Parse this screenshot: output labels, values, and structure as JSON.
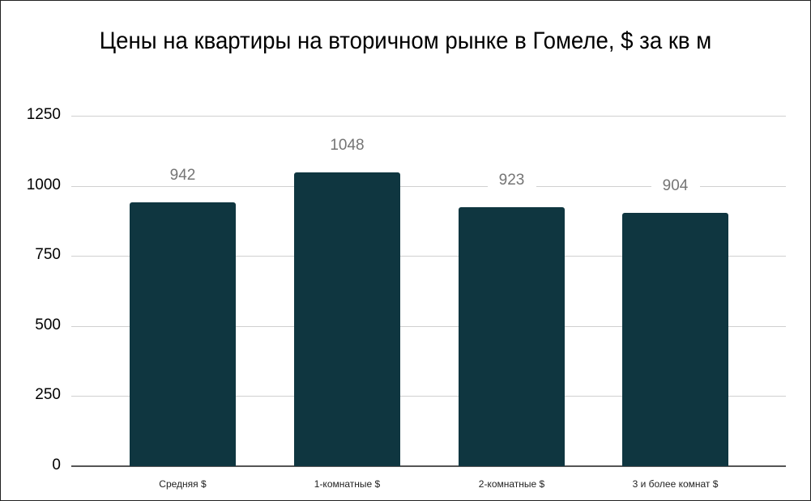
{
  "chart_data": {
    "type": "bar",
    "title": "Цены на квартиры на вторичном рынке в Гомеле, $ за кв м",
    "categories": [
      "Средняя $",
      "1-комнатные $",
      "2-комнатные $",
      "3 и более комнат $"
    ],
    "values": [
      942,
      1048,
      923,
      904
    ],
    "value_labels": [
      "942",
      "1048",
      "923",
      "904"
    ],
    "xlabel": "",
    "ylabel": "",
    "ylim": [
      0,
      1250
    ],
    "yticks": [
      "0",
      "250",
      "500",
      "750",
      "1000",
      "1250"
    ],
    "grid": true,
    "legend": "none",
    "bar_color": "#0f3640"
  }
}
